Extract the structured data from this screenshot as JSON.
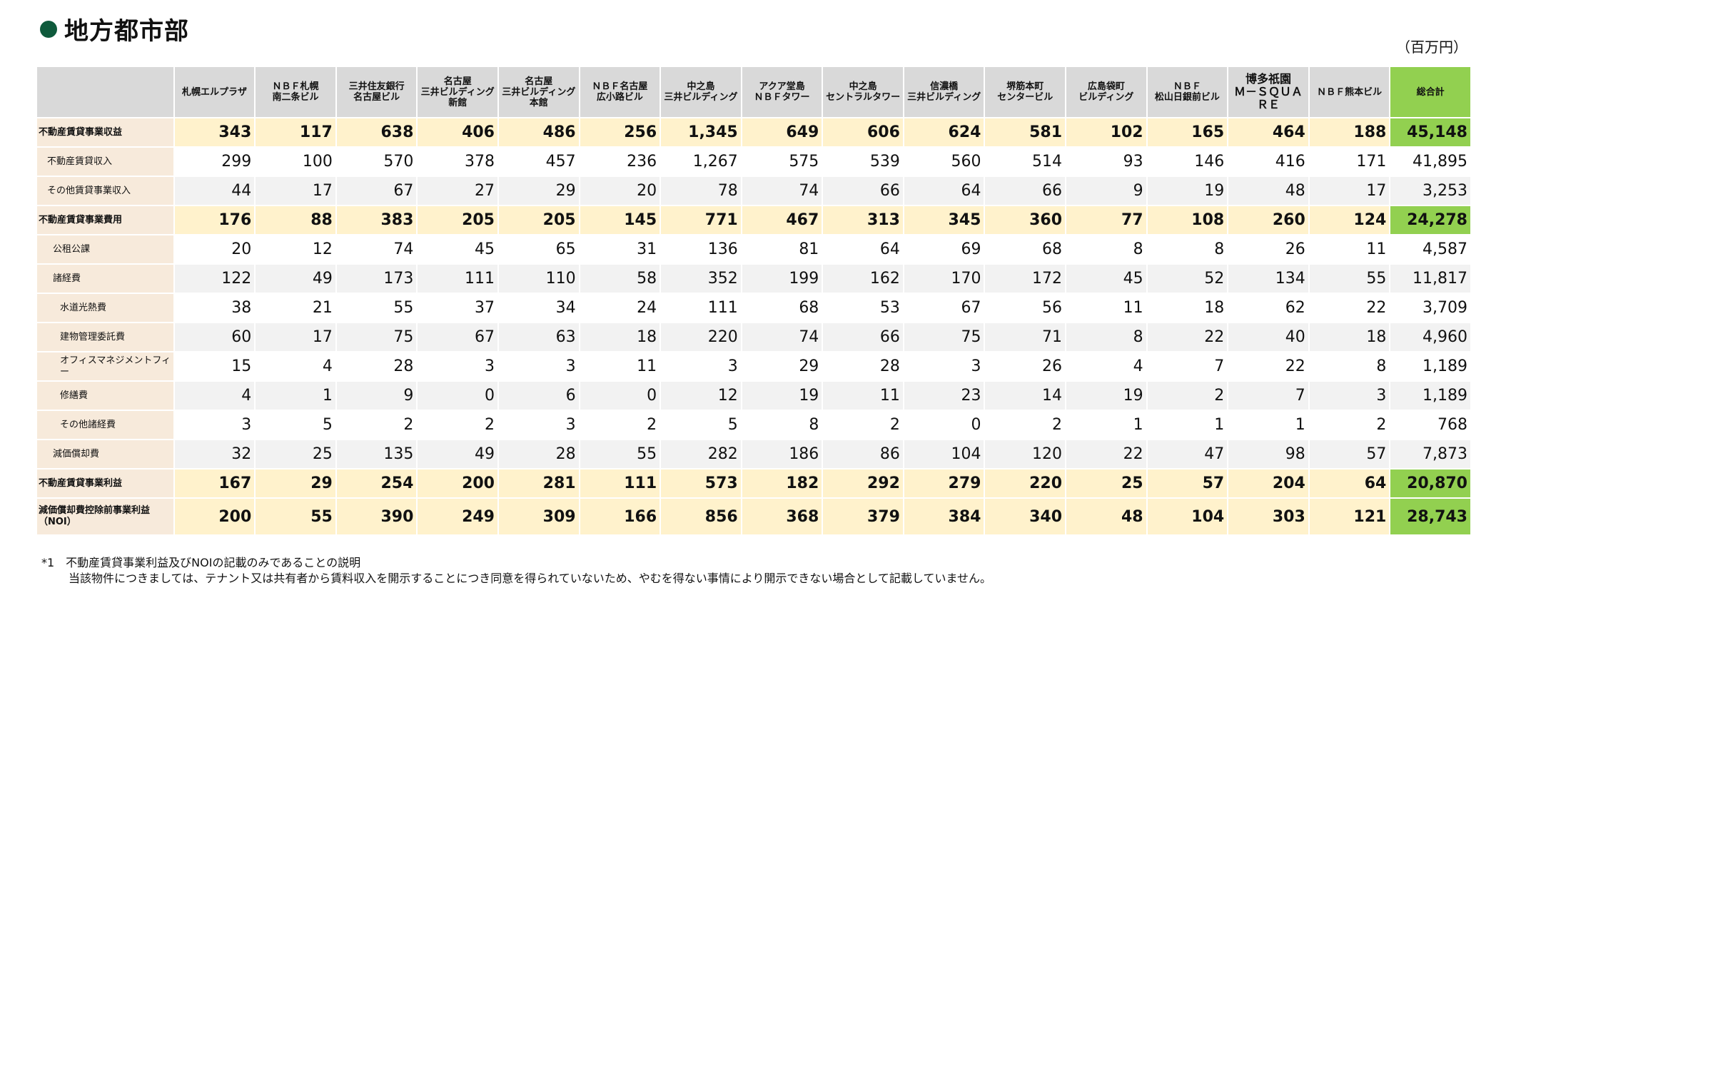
{
  "section_title": "地方都市部",
  "unit_label": "（百万円）",
  "columns": [
    "札幌エルプラザ",
    "ＮＢＦ札幌\n南二条ビル",
    "三井住友銀行\n名古屋ビル",
    "名古屋\n三井ビルディング\n新館",
    "名古屋\n三井ビルディング\n本館",
    "ＮＢＦ名古屋\n広小路ビル",
    "中之島\n三井ビルディング",
    "アクア堂島\nＮＢＦタワー",
    "中之島\nセントラルタワー",
    "信濃橋\n三井ビルディング",
    "堺筋本町\nセンタービル",
    "広島袋町\nビルディング",
    "ＮＢＦ\n松山日銀前ビル",
    "博多祇園\nＭ－ＳＱＵＡ\nＲＥ",
    "ＮＢＦ熊本ビル",
    "総合計"
  ],
  "rows": [
    {
      "label": "不動産賃貸事業収益",
      "values": [
        "343",
        "117",
        "638",
        "406",
        "486",
        "256",
        "1,345",
        "649",
        "606",
        "624",
        "581",
        "102",
        "165",
        "464",
        "188",
        "45,148"
      ]
    },
    {
      "label": "不動産賃貸収入",
      "values": [
        "299",
        "100",
        "570",
        "378",
        "457",
        "236",
        "1,267",
        "575",
        "539",
        "560",
        "514",
        "93",
        "146",
        "416",
        "171",
        "41,895"
      ]
    },
    {
      "label": "その他賃貸事業収入",
      "values": [
        "44",
        "17",
        "67",
        "27",
        "29",
        "20",
        "78",
        "74",
        "66",
        "64",
        "66",
        "9",
        "19",
        "48",
        "17",
        "3,253"
      ]
    },
    {
      "label": "不動産賃貸事業費用",
      "values": [
        "176",
        "88",
        "383",
        "205",
        "205",
        "145",
        "771",
        "467",
        "313",
        "345",
        "360",
        "77",
        "108",
        "260",
        "124",
        "24,278"
      ]
    },
    {
      "label": "公租公課",
      "values": [
        "20",
        "12",
        "74",
        "45",
        "65",
        "31",
        "136",
        "81",
        "64",
        "69",
        "68",
        "8",
        "8",
        "26",
        "11",
        "4,587"
      ]
    },
    {
      "label": "諸経費",
      "values": [
        "122",
        "49",
        "173",
        "111",
        "110",
        "58",
        "352",
        "199",
        "162",
        "170",
        "172",
        "45",
        "52",
        "134",
        "55",
        "11,817"
      ]
    },
    {
      "label": "水道光熱費",
      "values": [
        "38",
        "21",
        "55",
        "37",
        "34",
        "24",
        "111",
        "68",
        "53",
        "67",
        "56",
        "11",
        "18",
        "62",
        "22",
        "3,709"
      ]
    },
    {
      "label": "建物管理委託費",
      "values": [
        "60",
        "17",
        "75",
        "67",
        "63",
        "18",
        "220",
        "74",
        "66",
        "75",
        "71",
        "8",
        "22",
        "40",
        "18",
        "4,960"
      ]
    },
    {
      "label": "オフィスマネジメントフィー",
      "values": [
        "15",
        "4",
        "28",
        "3",
        "3",
        "11",
        "3",
        "29",
        "28",
        "3",
        "26",
        "4",
        "7",
        "22",
        "8",
        "1,189"
      ]
    },
    {
      "label": "修繕費",
      "values": [
        "4",
        "1",
        "9",
        "0",
        "6",
        "0",
        "12",
        "19",
        "11",
        "23",
        "14",
        "19",
        "2",
        "7",
        "3",
        "1,189"
      ]
    },
    {
      "label": "その他諸経費",
      "values": [
        "3",
        "5",
        "2",
        "2",
        "3",
        "2",
        "5",
        "8",
        "2",
        "0",
        "2",
        "1",
        "1",
        "1",
        "2",
        "768"
      ]
    },
    {
      "label": "減価償却費",
      "values": [
        "32",
        "25",
        "135",
        "49",
        "28",
        "55",
        "282",
        "186",
        "86",
        "104",
        "120",
        "22",
        "47",
        "98",
        "57",
        "7,873"
      ]
    },
    {
      "label": "不動産賃貸事業利益",
      "values": [
        "167",
        "29",
        "254",
        "200",
        "281",
        "111",
        "573",
        "182",
        "292",
        "279",
        "220",
        "25",
        "57",
        "204",
        "64",
        "20,870"
      ]
    },
    {
      "label": "減価償却費控除前事業利益\n（NOI）",
      "values": [
        "200",
        "55",
        "390",
        "249",
        "309",
        "166",
        "856",
        "368",
        "379",
        "384",
        "340",
        "48",
        "104",
        "303",
        "121",
        "28,743"
      ]
    }
  ],
  "notes": {
    "line1": "*1　不動産賃貸事業利益及びNOIの記載のみであることの説明",
    "line2": "当該物件につきましては、テナント又は共有者から賃料収入を開示することにつき同意を得られていないため、やむを得ない事情により開示できない場合として記載していません。"
  },
  "colors": {
    "title_dot": "#0f5a3c",
    "header_gray": "#d9d9d9",
    "total_green": "#92d050",
    "main_row": "#fff2cc",
    "label_bg": "#f7eadb",
    "alt_row": "#f2f2f2"
  }
}
